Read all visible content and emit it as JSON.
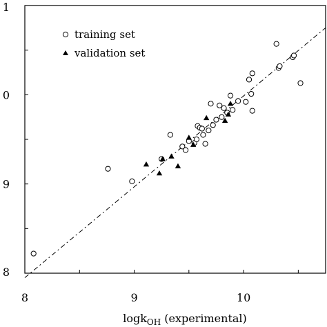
{
  "chart_data": {
    "type": "scatter",
    "xlabel": "logk",
    "xlabel_sub": "OH",
    "xlabel_suffix": " (experimental)",
    "xlim": [
      8,
      10.75
    ],
    "ylim": [
      8,
      11.0
    ],
    "xticks": [
      "8",
      "9",
      "10"
    ],
    "yticks": [
      "8",
      "9",
      "0",
      "1"
    ],
    "grid": false,
    "legend_position": "top-left",
    "fit_line": {
      "x": [
        8.0,
        10.75
      ],
      "y": [
        7.95,
        10.75
      ],
      "style": "dash-dot"
    },
    "series": [
      {
        "name": "training set",
        "marker": "open-circle",
        "color": "#000000",
        "points": [
          [
            8.08,
            8.22
          ],
          [
            8.76,
            9.17
          ],
          [
            8.98,
            9.03
          ],
          [
            9.25,
            9.28
          ],
          [
            9.33,
            9.55
          ],
          [
            9.44,
            9.42
          ],
          [
            9.47,
            9.38
          ],
          [
            9.5,
            9.48
          ],
          [
            9.55,
            9.46
          ],
          [
            9.57,
            9.5
          ],
          [
            9.58,
            9.65
          ],
          [
            9.6,
            9.63
          ],
          [
            9.62,
            9.62
          ],
          [
            9.63,
            9.55
          ],
          [
            9.65,
            9.45
          ],
          [
            9.68,
            9.6
          ],
          [
            9.7,
            9.9
          ],
          [
            9.72,
            9.66
          ],
          [
            9.75,
            9.72
          ],
          [
            9.78,
            9.88
          ],
          [
            9.8,
            9.75
          ],
          [
            9.82,
            9.85
          ],
          [
            9.85,
            9.8
          ],
          [
            9.88,
            9.99
          ],
          [
            9.9,
            9.83
          ],
          [
            9.95,
            9.93
          ],
          [
            10.02,
            9.92
          ],
          [
            10.05,
            10.17
          ],
          [
            10.07,
            10.01
          ],
          [
            10.08,
            10.24
          ],
          [
            10.08,
            9.82
          ],
          [
            10.3,
            10.57
          ],
          [
            10.32,
            10.3
          ],
          [
            10.33,
            10.32
          ],
          [
            10.45,
            10.42
          ],
          [
            10.46,
            10.44
          ],
          [
            10.52,
            10.13
          ]
        ]
      },
      {
        "name": "validation set",
        "marker": "filled-triangle",
        "color": "#000000",
        "points": [
          [
            9.11,
            9.22
          ],
          [
            9.23,
            9.12
          ],
          [
            9.26,
            9.28
          ],
          [
            9.34,
            9.31
          ],
          [
            9.4,
            9.2
          ],
          [
            9.5,
            9.52
          ],
          [
            9.54,
            9.44
          ],
          [
            9.66,
            9.74
          ],
          [
            9.83,
            9.71
          ],
          [
            9.86,
            9.78
          ],
          [
            9.88,
            9.9
          ]
        ]
      }
    ]
  }
}
